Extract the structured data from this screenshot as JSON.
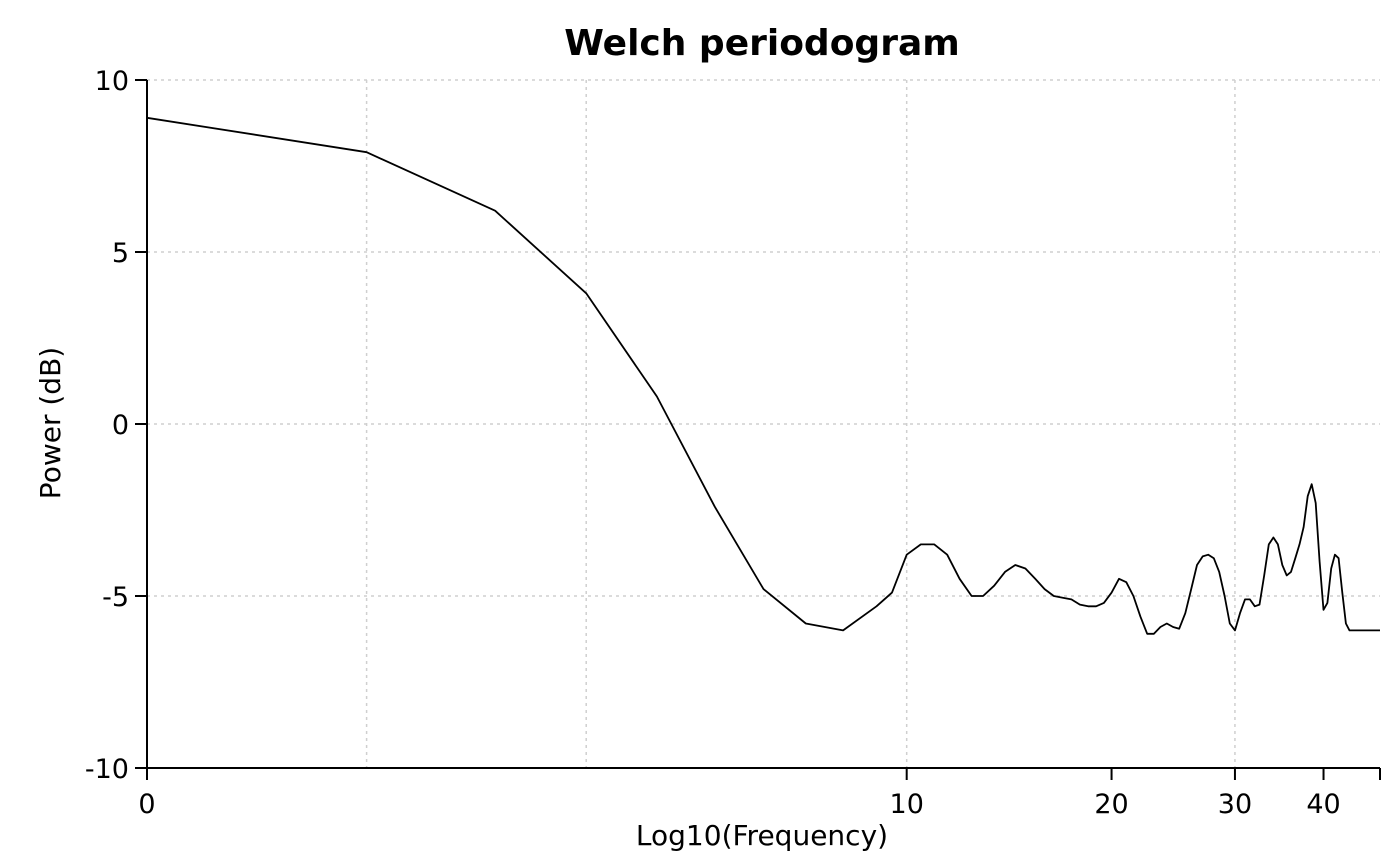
{
  "chart_data": {
    "type": "line",
    "title": "Welch periodogram",
    "xlabel": "Log10(Frequency)",
    "ylabel": "Power (dB)",
    "x_scale": "log10(1+f)",
    "xlim": [
      0,
      48
    ],
    "ylim": [
      -10,
      10
    ],
    "grid": true,
    "yticks": [
      10,
      5,
      0,
      -5,
      -10
    ],
    "ytick_labels": [
      "10",
      "5",
      "0",
      "-5",
      "-10"
    ],
    "xticks": [
      0,
      10,
      20,
      30,
      40
    ],
    "xtick_labels": [
      "0",
      "10",
      "20",
      "30",
      "40"
    ],
    "x_minor_ticks": [
      48
    ],
    "x_gridlines": [
      1,
      3,
      10,
      30
    ],
    "series": [
      {
        "x": [
          0,
          1,
          2,
          3,
          4,
          5,
          6,
          7,
          8,
          9,
          9.5,
          10,
          10.5,
          11,
          11.5,
          12,
          12.5,
          13,
          13.5,
          14,
          14.5,
          15,
          15.5,
          16,
          16.5,
          17,
          17.5,
          18,
          18.5,
          19,
          19.5,
          20,
          20.5,
          21,
          21.5,
          22,
          22.5,
          23,
          23.5,
          24,
          24.5,
          25,
          25.5,
          26,
          26.5,
          27,
          27.5,
          28,
          28.5,
          29,
          29.5,
          30,
          30.5,
          31,
          31.5,
          32,
          32.5,
          33,
          33.5,
          34,
          34.5,
          35,
          35.5,
          36,
          36.5,
          37,
          37.5,
          38,
          38.5,
          39,
          39.5,
          40,
          40.5,
          41,
          41.5,
          42,
          42.5,
          43,
          43.5,
          44,
          44.5,
          45,
          45.5,
          46,
          46.5,
          47,
          47.5,
          48
        ],
        "y": [
          8.9,
          7.9,
          6.2,
          3.8,
          0.8,
          -2.4,
          -4.8,
          -5.8,
          -6.0,
          -5.3,
          -4.9,
          -3.8,
          -3.5,
          -3.5,
          -3.8,
          -4.5,
          -5.0,
          -5.0,
          -4.7,
          -4.3,
          -4.1,
          -4.2,
          -4.5,
          -4.8,
          -5.0,
          -5.05,
          -5.1,
          -5.25,
          -5.3,
          -5.3,
          -5.2,
          -4.9,
          -4.5,
          -4.6,
          -5.0,
          -5.6,
          -6.1,
          -6.1,
          -5.9,
          -5.8,
          -5.9,
          -5.95,
          -5.5,
          -4.8,
          -4.1,
          -3.85,
          -3.8,
          -3.9,
          -4.3,
          -5.0,
          -5.8,
          -6.0,
          -5.5,
          -5.1,
          -5.1,
          -5.3,
          -5.25,
          -4.4,
          -3.5,
          -3.3,
          -3.5,
          -4.1,
          -4.4,
          -4.3,
          -3.9,
          -3.5,
          -3.0,
          -2.1,
          -1.75,
          -2.3,
          -4.0,
          -5.4,
          -5.2,
          -4.2,
          -3.8,
          -3.9,
          -4.9,
          -5.8,
          -6.0,
          -6.0,
          -6.0,
          -6.0,
          -6.0,
          -6.0,
          -6.0,
          -6.0,
          -6.0,
          -6.0
        ]
      }
    ]
  }
}
